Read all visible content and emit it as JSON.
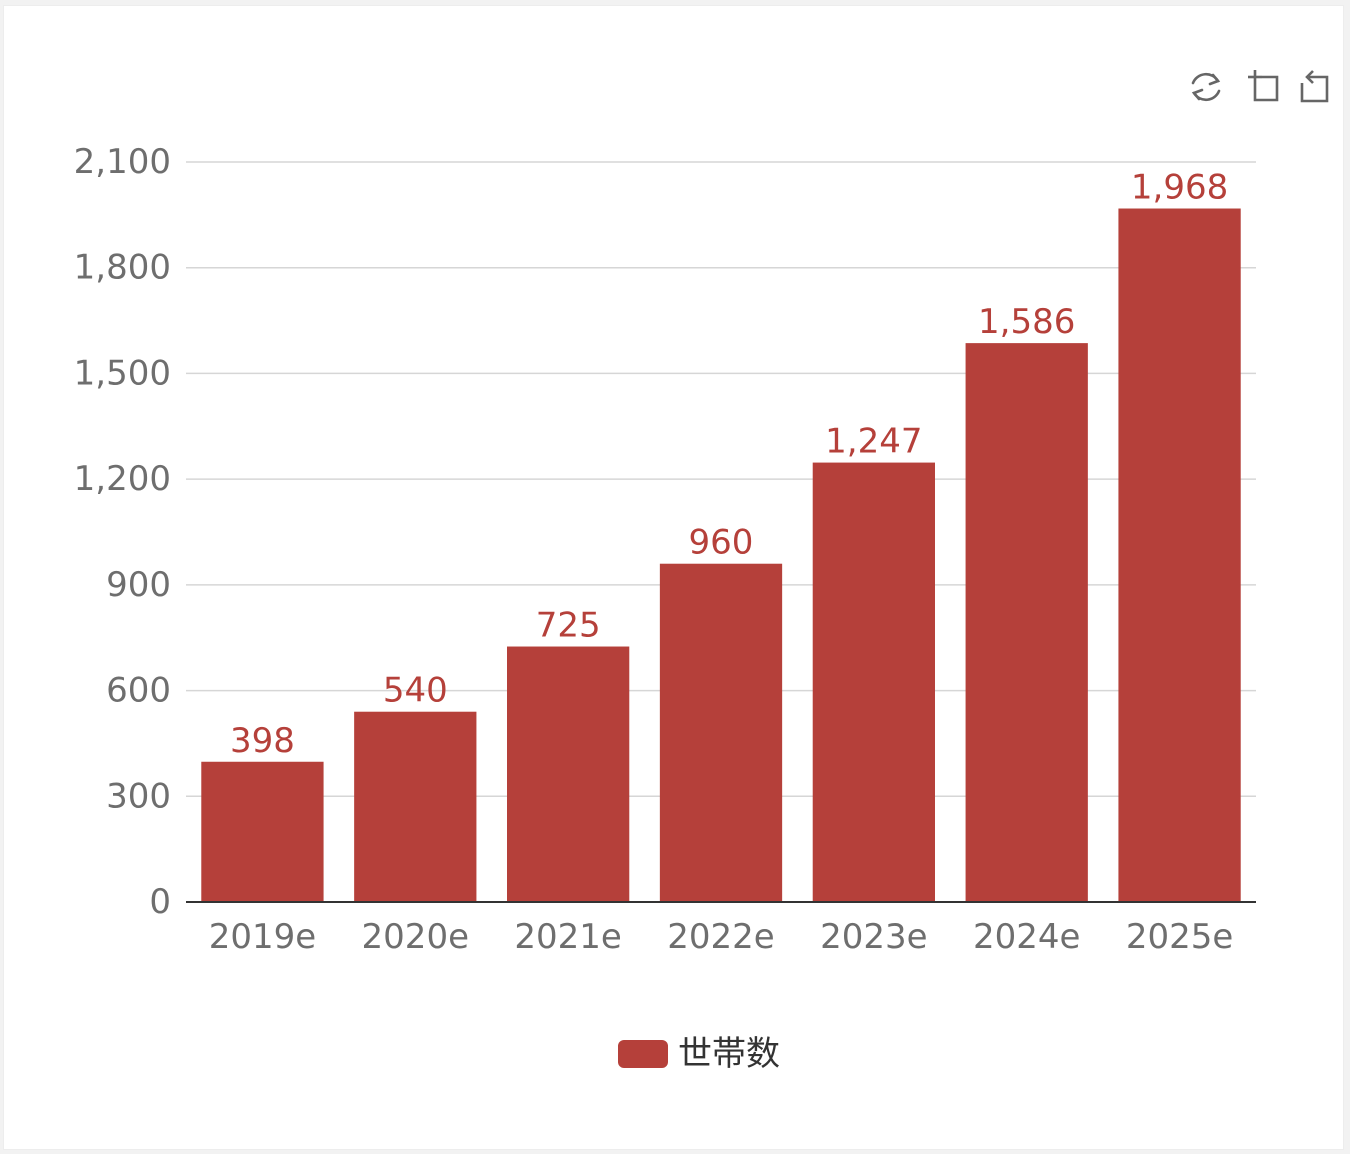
{
  "toolbox": {
    "icons": [
      "refresh-icon",
      "data-zoom-icon",
      "zoom-reset-icon"
    ]
  },
  "chart_data": {
    "type": "bar",
    "categories": [
      "2019e",
      "2020e",
      "2021e",
      "2022e",
      "2023e",
      "2024e",
      "2025e"
    ],
    "series": [
      {
        "name": "世帯数",
        "values": [
          398,
          540,
          725,
          960,
          1247,
          1586,
          1968
        ],
        "color": "#b5403a",
        "value_labels": [
          "398",
          "540",
          "725",
          "960",
          "1,247",
          "1,586",
          "1,968"
        ]
      }
    ],
    "ylim": [
      0,
      2100
    ],
    "yticks": [
      0,
      300,
      600,
      900,
      1200,
      1500,
      1800,
      2100
    ],
    "ytick_labels": [
      "0",
      "300",
      "600",
      "900",
      "1,200",
      "1,500",
      "1,800",
      "2,100"
    ],
    "grid": true,
    "legend_position": "bottom-center",
    "title": "",
    "xlabel": "",
    "ylabel": "",
    "colors": {
      "bar": "#b5403a",
      "grid": "#d6d6d6",
      "axis": "#333333",
      "tick_text": "#6e6e6e",
      "label_text": "#b5403a"
    }
  }
}
